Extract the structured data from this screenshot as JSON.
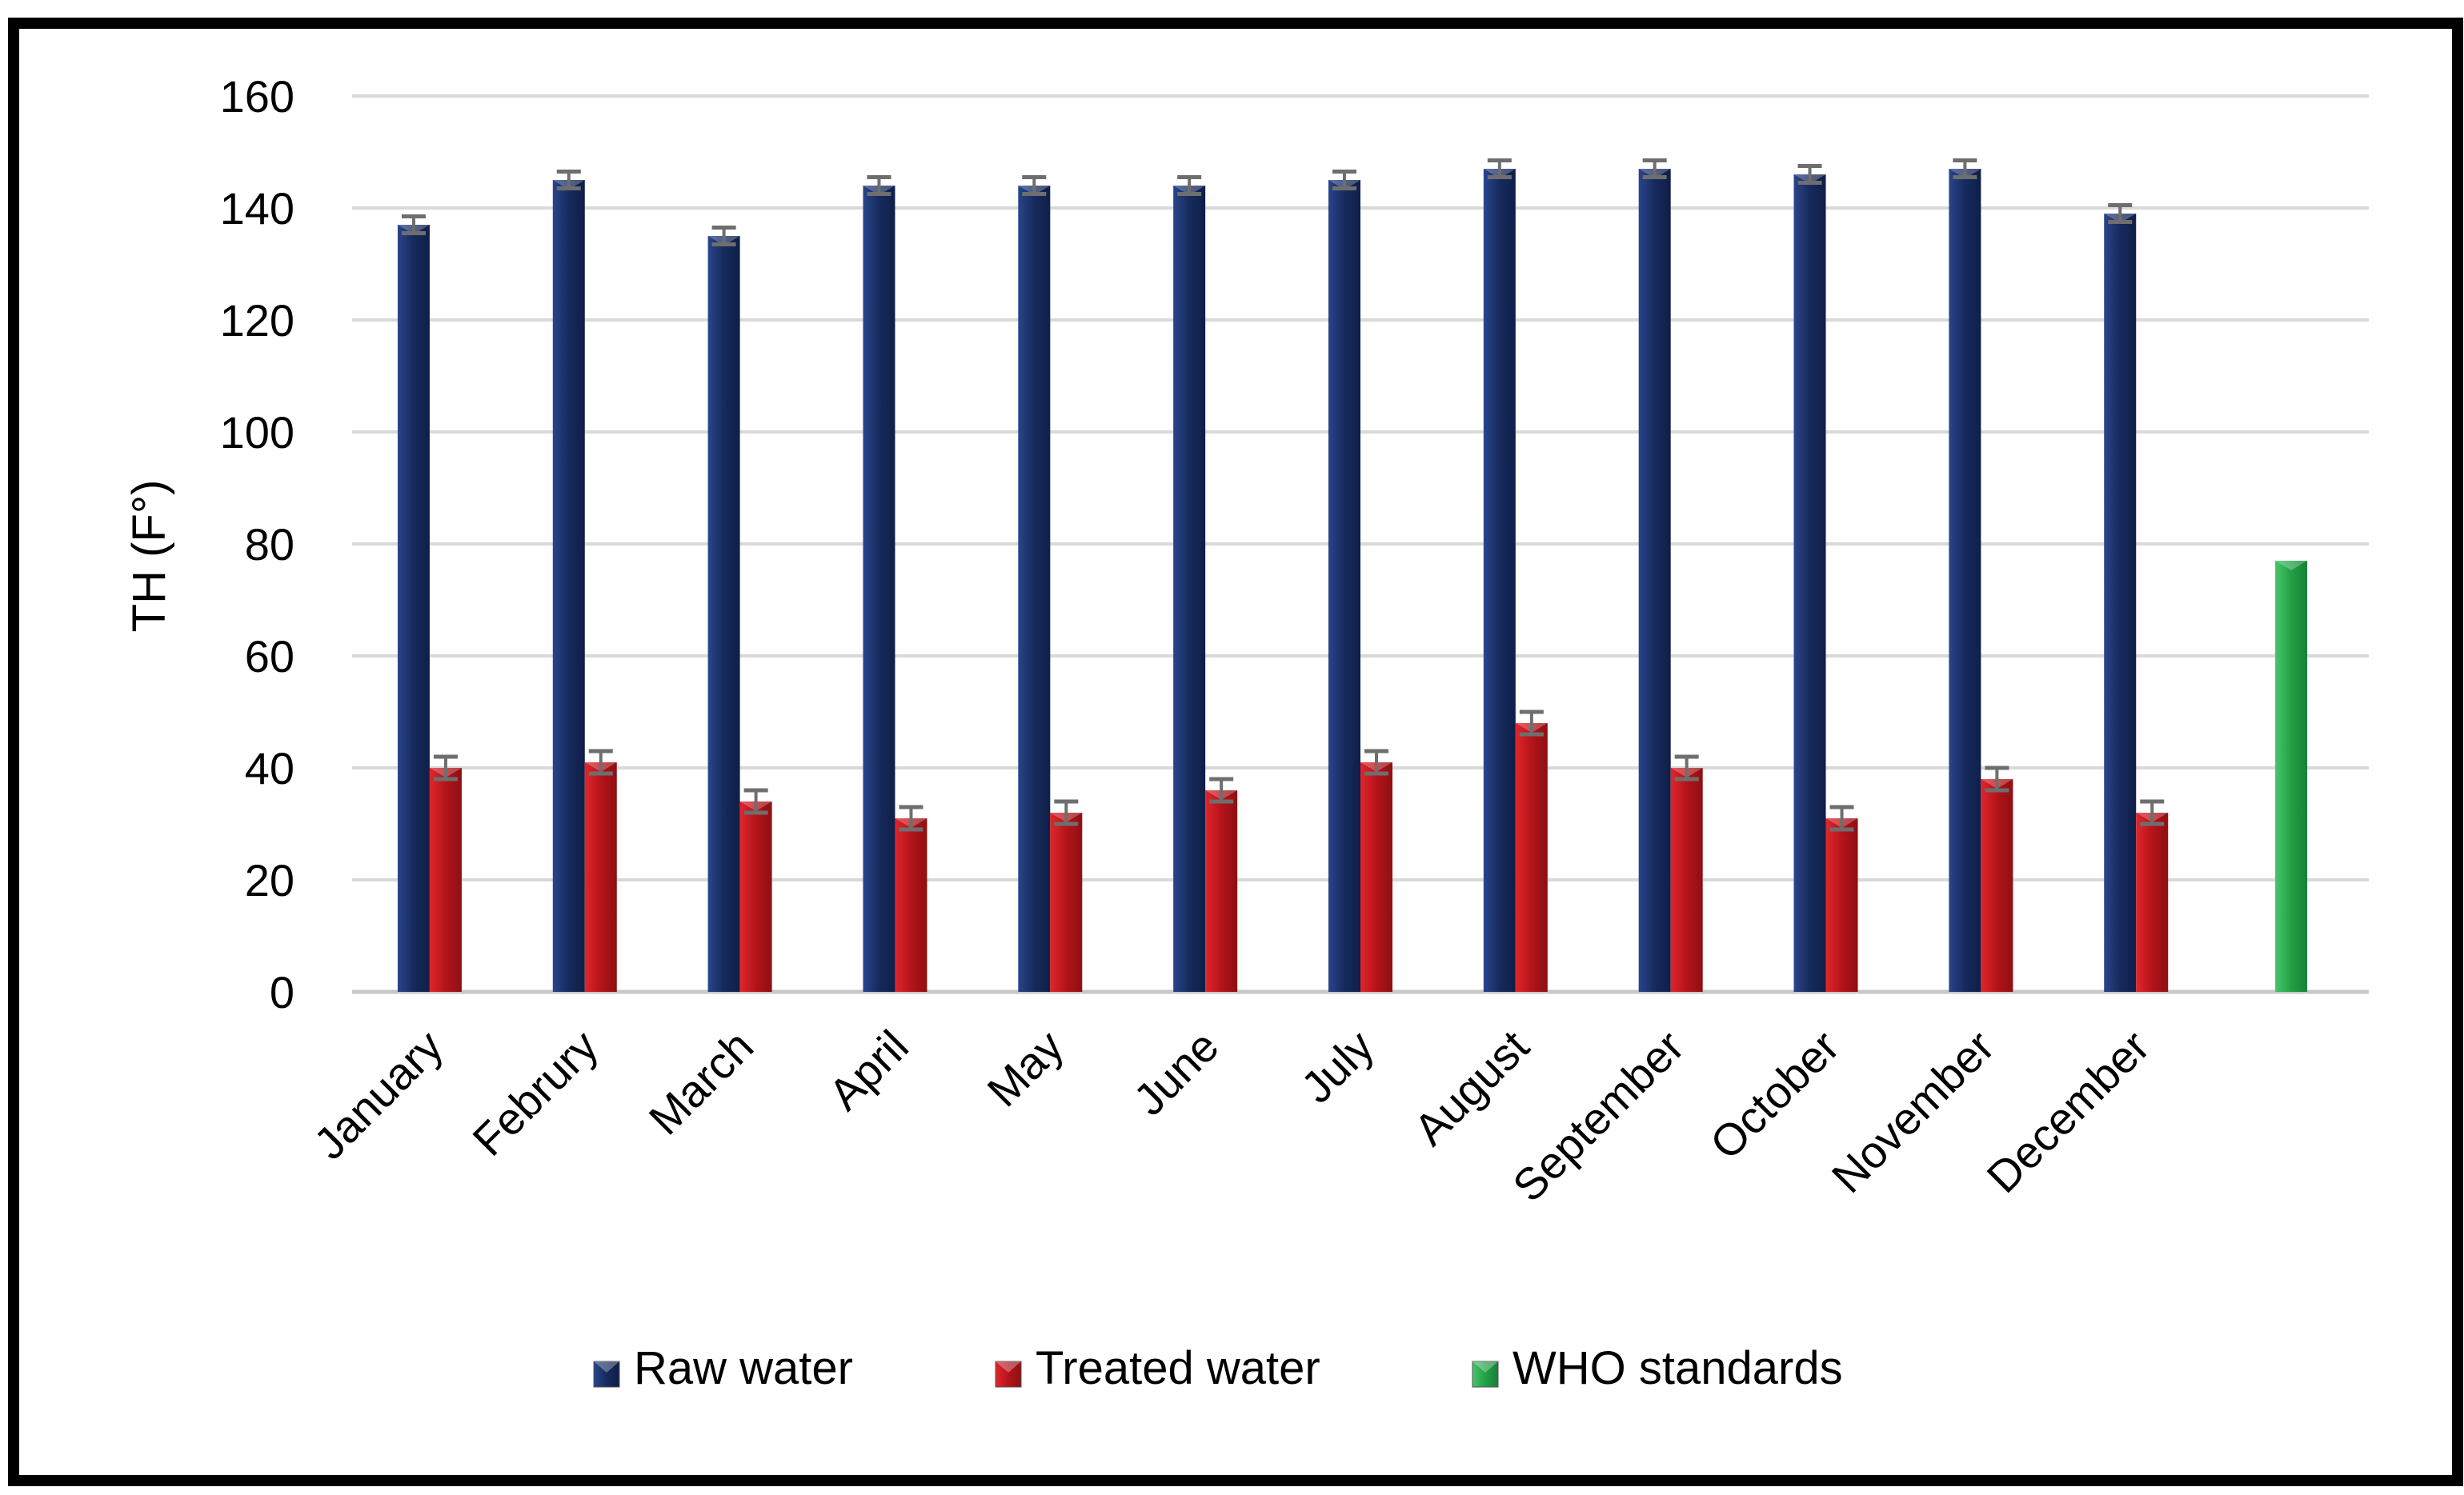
{
  "chart_data": {
    "type": "bar",
    "title": "",
    "xlabel": "",
    "ylabel": "TH (F°)",
    "ylim": [
      0,
      160
    ],
    "yticks": [
      0,
      20,
      40,
      60,
      80,
      100,
      120,
      140,
      160
    ],
    "grid": true,
    "legend_position": "bottom",
    "categories": [
      "January",
      "Februry",
      "March",
      "April",
      "May",
      "June",
      "July",
      "August",
      "September",
      "October",
      "November",
      "December",
      ""
    ],
    "series": [
      {
        "name": "Raw water",
        "color": "#1B2F66",
        "values": [
          137,
          145,
          135,
          144,
          144,
          144,
          145,
          147,
          147,
          146,
          147,
          139,
          null
        ],
        "error": 1.5
      },
      {
        "name": "Treated water",
        "color": "#C0161C",
        "values": [
          40,
          41,
          34,
          31,
          32,
          36,
          41,
          48,
          40,
          31,
          38,
          32,
          null
        ],
        "error": 2
      },
      {
        "name": "WHO standards",
        "color": "#2AA34A",
        "values": [
          null,
          null,
          null,
          null,
          null,
          null,
          null,
          null,
          null,
          null,
          null,
          null,
          77
        ],
        "error": 0
      }
    ]
  }
}
